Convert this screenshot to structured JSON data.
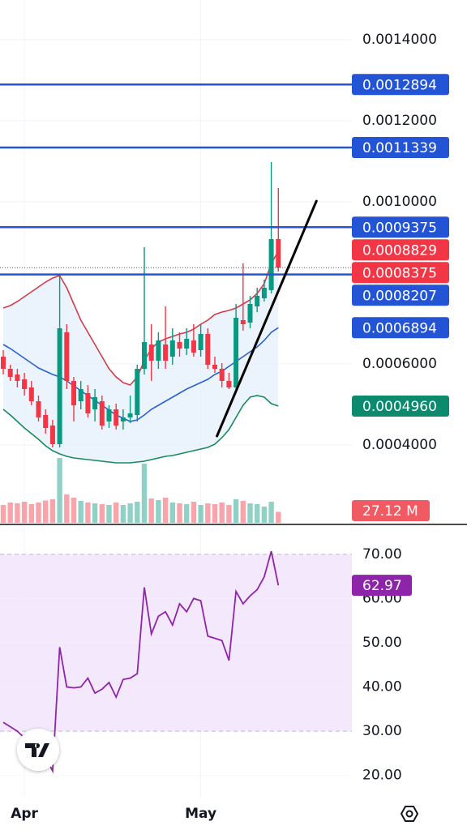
{
  "chart_data": [
    {
      "type": "candlestick",
      "categories": [
        null,
        null,
        null,
        "Apr",
        null,
        null,
        null,
        null,
        null,
        null,
        null,
        null,
        null,
        null,
        null,
        null,
        null,
        null,
        null,
        null,
        null,
        null,
        null,
        null,
        null,
        null,
        null,
        null,
        "May",
        null,
        null,
        null,
        null,
        null,
        null,
        null,
        null,
        null,
        null,
        null
      ],
      "open": [
        0.000618,
        0.000588,
        0.000574,
        0.000562,
        0.000542,
        0.000508,
        0.000474,
        0.000448,
        0.000402,
        0.000678,
        0.000558,
        0.000508,
        0.000528,
        0.000488,
        0.000508,
        0.000458,
        0.000488,
        0.000458,
        0.000468,
        0.000474,
        0.000588,
        0.000648,
        0.000608,
        0.000648,
        0.000618,
        0.000654,
        0.000638,
        0.000658,
        0.000634,
        0.000674,
        0.000598,
        0.000588,
        0.000558,
        0.000542,
        0.000708,
        0.000702,
        0.000742,
        0.000762,
        0.000782,
        0.000908
      ],
      "high": [
        0.000634,
        0.000598,
        0.000588,
        0.000578,
        0.000558,
        0.000522,
        0.000488,
        0.000462,
        0.000822,
        0.000698,
        0.000568,
        0.000558,
        0.000548,
        0.000538,
        0.000522,
        0.000498,
        0.000502,
        0.000488,
        0.000522,
        0.000598,
        0.000888,
        0.000698,
        0.000678,
        0.000742,
        0.000688,
        0.000678,
        0.000688,
        0.000698,
        0.000698,
        0.000688,
        0.000618,
        0.000602,
        0.000578,
        0.000748,
        0.000848,
        0.000768,
        0.000788,
        0.000808,
        0.001098,
        0.001034
      ],
      "low": [
        0.000574,
        0.000558,
        0.000542,
        0.000522,
        0.000498,
        0.000458,
        0.000428,
        0.000394,
        0.000394,
        0.000538,
        0.000458,
        0.000488,
        0.000468,
        0.000458,
        0.000438,
        0.000442,
        0.000438,
        0.000438,
        0.000454,
        0.000458,
        0.000574,
        0.000558,
        0.000588,
        0.000588,
        0.000598,
        0.000618,
        0.000622,
        0.000618,
        0.000618,
        0.000588,
        0.000578,
        0.000542,
        0.000538,
        0.000534,
        0.000682,
        0.000688,
        0.000728,
        0.000754,
        0.000774,
        0.000828
      ],
      "close": [
        0.000588,
        0.000568,
        0.000558,
        0.000538,
        0.000508,
        0.000468,
        0.000442,
        0.000402,
        0.000688,
        0.000558,
        0.000498,
        0.000538,
        0.000478,
        0.000518,
        0.000448,
        0.000488,
        0.000448,
        0.000468,
        0.000478,
        0.000588,
        0.000654,
        0.000608,
        0.000658,
        0.000608,
        0.000658,
        0.000638,
        0.000662,
        0.000628,
        0.000674,
        0.000598,
        0.000588,
        0.000558,
        0.000542,
        0.000714,
        0.000698,
        0.000748,
        0.000768,
        0.000788,
        0.000908,
        0.0008375
      ],
      "up_color": "#089981",
      "down_color": "#f23645",
      "ylim": [
        0.000208,
        0.001498
      ],
      "yticks": [
        {
          "value": 0.0014,
          "label": "0.0014000"
        },
        {
          "value": 0.0012,
          "label": "0.0012000"
        },
        {
          "value": 0.001,
          "label": "0.0010000"
        },
        {
          "value": 0.0006,
          "label": "0.0006000"
        },
        {
          "value": 0.0004,
          "label": "0.0004000"
        }
      ],
      "grid": true,
      "bands": {
        "fill": "#e3effb",
        "upper": {
          "color": "#d23c4a",
          "values": [
            0.000738,
            0.000744,
            0.000754,
            0.000766,
            0.000778,
            0.00079,
            0.000802,
            0.000812,
            0.000818,
            0.000788,
            0.000748,
            0.000708,
            0.000678,
            0.000648,
            0.000618,
            0.000588,
            0.000568,
            0.000554,
            0.000548,
            0.000568,
            0.000608,
            0.000638,
            0.000654,
            0.000662,
            0.000668,
            0.000674,
            0.000678,
            0.000686,
            0.000698,
            0.000708,
            0.000722,
            0.000728,
            0.000732,
            0.000738,
            0.000748,
            0.000758,
            0.000774,
            0.000798,
            0.000848,
            0.000878
          ]
        },
        "middle": {
          "color": "#2c5fd1",
          "values": [
            0.000648,
            0.000638,
            0.000626,
            0.000614,
            0.000602,
            0.00059,
            0.000582,
            0.000574,
            0.000568,
            0.000558,
            0.000546,
            0.000534,
            0.000522,
            0.00051,
            0.000498,
            0.000486,
            0.000474,
            0.000466,
            0.000458,
            0.000462,
            0.000474,
            0.000488,
            0.000498,
            0.000508,
            0.000518,
            0.000528,
            0.000538,
            0.000546,
            0.000554,
            0.000562,
            0.000574,
            0.000582,
            0.000594,
            0.000606,
            0.000618,
            0.00063,
            0.000642,
            0.000658,
            0.000678,
            0.0006894
          ]
        },
        "lower": {
          "color": "#1a8a5c",
          "values": [
            0.000488,
            0.000474,
            0.000458,
            0.000442,
            0.000428,
            0.000414,
            0.000398,
            0.000386,
            0.000378,
            0.000372,
            0.000368,
            0.000366,
            0.000364,
            0.000362,
            0.00036,
            0.000358,
            0.000356,
            0.000356,
            0.000356,
            0.000358,
            0.00036,
            0.000364,
            0.000368,
            0.000372,
            0.000374,
            0.000378,
            0.000382,
            0.000386,
            0.00039,
            0.000394,
            0.000402,
            0.000418,
            0.000438,
            0.000468,
            0.000498,
            0.000518,
            0.000522,
            0.000518,
            0.000502,
            0.000496
          ]
        }
      },
      "horizontal_lines": [
        {
          "value": 0.0012894,
          "label": "0.0012894",
          "color": "#2454d6"
        },
        {
          "value": 0.0011339,
          "label": "0.0011339",
          "color": "#2454d6"
        },
        {
          "value": 0.0009375,
          "label": "0.0009375",
          "color": "#2454d6"
        },
        {
          "value": 0.0008207,
          "label": "0.0008207",
          "color": "#2454d6"
        }
      ],
      "price_labels": [
        {
          "value": 0.0008829,
          "label": "0.0008829",
          "color": "#f23645"
        },
        {
          "value": 0.0008375,
          "label": "0.0008375",
          "color": "#f23645"
        },
        {
          "value": 0.0006894,
          "label": "0.0006894",
          "color": "#2454d6"
        },
        {
          "value": 0.000496,
          "label": "0.0004960",
          "color": "#0b8a6e"
        }
      ],
      "trendline": {
        "x": [
          30.3,
          44.4
        ],
        "y": [
          0.000422,
          0.001002
        ],
        "color": "#000000"
      },
      "volume": {
        "ylim": [
          0,
          320
        ],
        "values": [
          44,
          50,
          48,
          52,
          46,
          50,
          55,
          58,
          160,
          70,
          62,
          54,
          50,
          48,
          46,
          44,
          50,
          44,
          48,
          52,
          146,
          60,
          56,
          62,
          50,
          48,
          46,
          52,
          44,
          48,
          46,
          50,
          44,
          58,
          54,
          48,
          46,
          40,
          52,
          27.12
        ],
        "last_label": "27.12 M",
        "label_color": "#f05a62"
      }
    },
    {
      "type": "line",
      "values": [
        32,
        31,
        30,
        28.5,
        27,
        26,
        24,
        21,
        49,
        40,
        39.8,
        40,
        42,
        38.6,
        39.5,
        41,
        37.7,
        41.7,
        42,
        43,
        62.5,
        52,
        56,
        57,
        54,
        58.8,
        57,
        60,
        59.5,
        51.5,
        51,
        50.5,
        46,
        61.6,
        58.8,
        60.6,
        62,
        64.9,
        70.7,
        62.97
      ],
      "color": "#8e24aa",
      "ylim": [
        14.8,
        76.2
      ],
      "yticks": [
        {
          "value": 70,
          "label": "70.00"
        },
        {
          "value": 60,
          "label": "60.00"
        },
        {
          "value": 50,
          "label": "50.00"
        },
        {
          "value": 40,
          "label": "40.00"
        },
        {
          "value": 30,
          "label": "30.00"
        },
        {
          "value": 20,
          "label": "20.00"
        }
      ],
      "band": [
        30,
        70
      ],
      "band_color": "#f1e3fb"
    }
  ]
}
